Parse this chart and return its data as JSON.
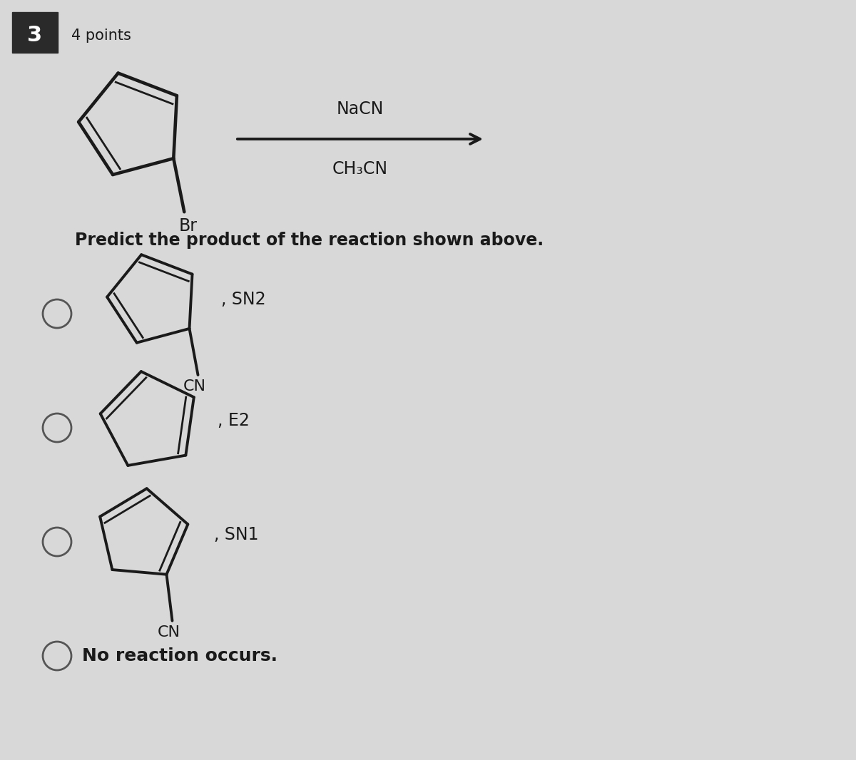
{
  "bg_color": "#d8d8d8",
  "question_num": "3",
  "points_text": "4 points",
  "reagent_top": "NaCN",
  "reagent_bottom": "CH₃CN",
  "question_text": "Predict the product of the reaction shown above.",
  "line_color": "#1a1a1a",
  "text_color": "#1a1a1a",
  "circle_color": "#555555",
  "header_box_color": "#2a2a2a",
  "lw_main": 2.8,
  "lw_double": 2.0,
  "font_size_main": 15,
  "font_size_label": 14,
  "font_size_header": 14,
  "font_size_bond_label": 13
}
